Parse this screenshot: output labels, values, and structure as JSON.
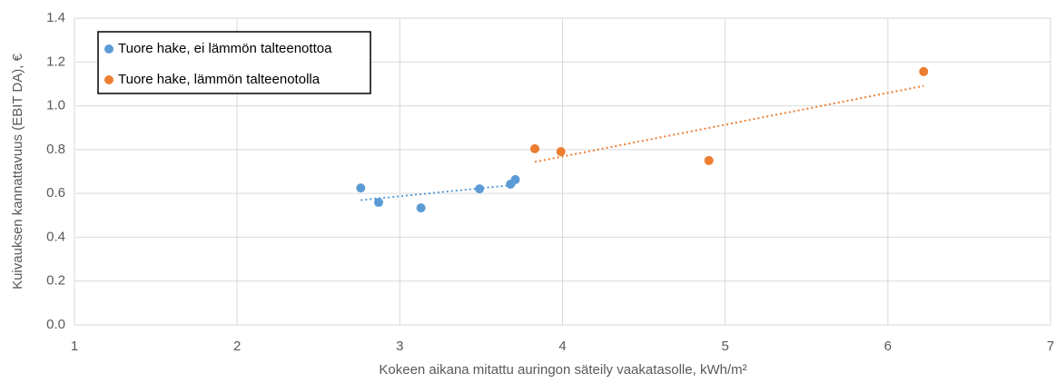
{
  "chart_data": {
    "type": "scatter",
    "ylabel": "Kuivauksen kannattavuus (EBIT DA), €",
    "xlabel": "Kokeen aikana mitattu auringon säteily vaakatasolle, kWh/m²",
    "xlim": [
      1,
      7
    ],
    "xticks": [
      1,
      2,
      3,
      4,
      5,
      6,
      7
    ],
    "ylim": [
      0,
      1.4
    ],
    "yticks": [
      {
        "value": 0,
        "label": "0.0"
      },
      {
        "value": 0.2,
        "label": "0.2"
      },
      {
        "value": 0.4,
        "label": "0.4"
      },
      {
        "value": 0.6,
        "label": "0.6"
      },
      {
        "value": 0.8,
        "label": "0.8"
      },
      {
        "value": 1.0,
        "label": "1.0"
      },
      {
        "value": 1.2,
        "label": "1.2"
      },
      {
        "value": 1.4,
        "label": "1.4"
      }
    ],
    "grid": true,
    "legend": "upper-left",
    "trendline": true,
    "series": [
      {
        "name": "Tuore hake, ei lämmön talteenottoa",
        "color": "#5b9bd5",
        "x": [
          2.76,
          2.87,
          3.13,
          3.49,
          3.68,
          3.71
        ],
        "values": [
          0.625,
          0.559,
          0.534,
          0.621,
          0.642,
          0.663
        ]
      },
      {
        "name": "Tuore hake, lämmön talteenotolla",
        "color": "#ed7d31",
        "x": [
          3.83,
          3.99,
          4.9,
          6.22
        ],
        "values": [
          0.804,
          0.791,
          0.75,
          1.156
        ]
      }
    ]
  }
}
